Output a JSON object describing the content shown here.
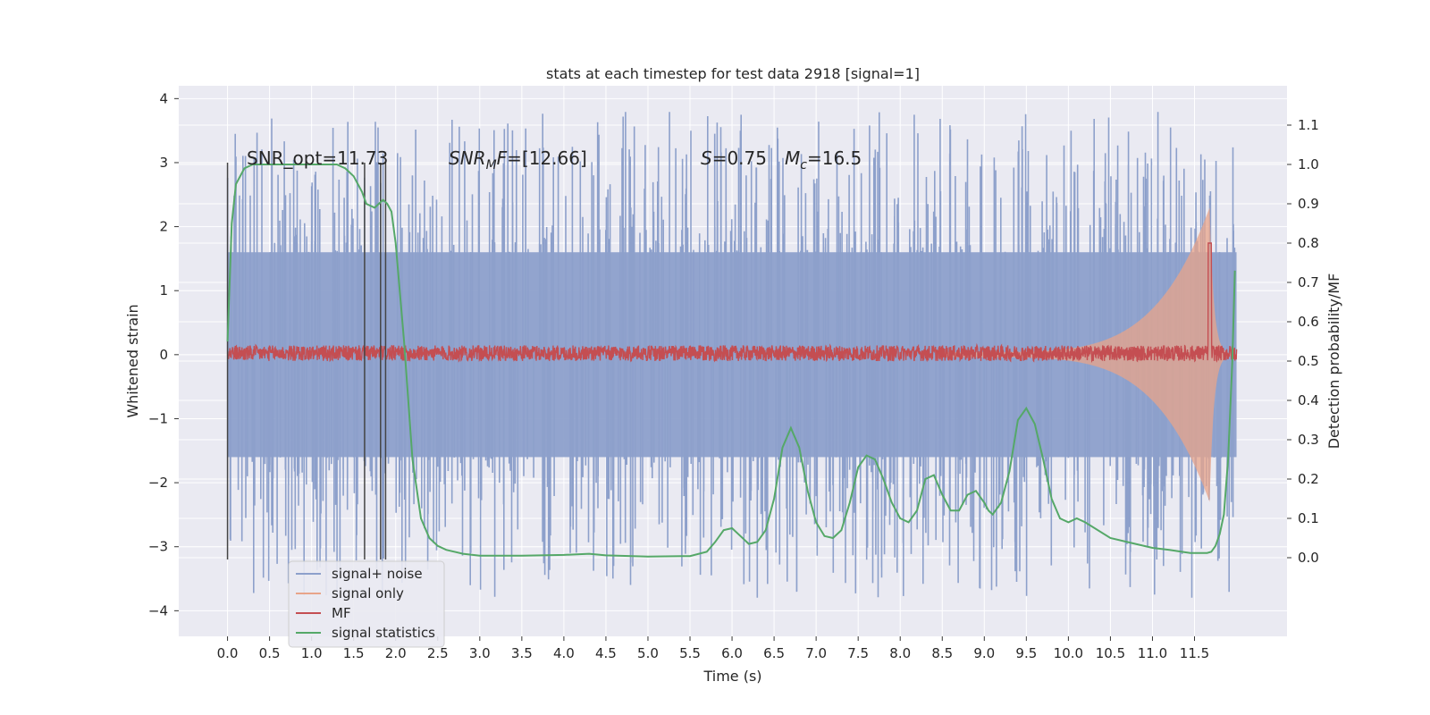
{
  "chart_data": {
    "type": "line",
    "title": "stats at each timestep for test data 2918 [signal=1]",
    "xlabel": "Time (s)",
    "ylabel_left": "Whitened strain",
    "ylabel_right": "Detection probability/MF",
    "xlim": [
      -0.58,
      12.6
    ],
    "ylim_left": [
      -4.4,
      4.2
    ],
    "ylim_right": [
      -0.2,
      1.2
    ],
    "xticks": [
      "0.0",
      "0.5",
      "1.0",
      "1.5",
      "2.0",
      "2.5",
      "3.0",
      "3.5",
      "4.0",
      "4.5",
      "5.0",
      "5.5",
      "6.0",
      "6.5",
      "7.0",
      "7.5",
      "8.0",
      "8.5",
      "9.0",
      "9.5",
      "10.0",
      "10.5",
      "11.0",
      "11.5"
    ],
    "yticks_left": [
      "-4",
      "-3",
      "-2",
      "-1",
      "0",
      "1",
      "2",
      "3",
      "4"
    ],
    "yticks_right": [
      "0.0",
      "0.1",
      "0.2",
      "0.3",
      "0.4",
      "0.5",
      "0.6",
      "0.7",
      "0.8",
      "0.9",
      "1.0",
      "1.1"
    ],
    "grid": true,
    "legend_position": "lower-left",
    "annotations": {
      "snr_opt": "SNR_opt=11.73",
      "snr_mf": "=[12.66]",
      "snr_mf_symbol": "SNR",
      "snr_mf_sub": "M",
      "snr_mf_f": "F",
      "s_symbol": "S",
      "s_value": "=0.75",
      "mc_symbol": "M",
      "mc_sub": "c",
      "mc_value": "=16.5"
    },
    "vertical_lines_x": [
      0.0,
      1.63,
      1.82,
      1.88
    ],
    "series": [
      {
        "name": "signal+ noise",
        "color": "#8da0cb",
        "envelope": {
          "x_start": 0.0,
          "x_end": 12.0,
          "core_amplitude": 1.6,
          "peak_amplitude": 3.8
        }
      },
      {
        "name": "signal only",
        "color": "#e8a48a",
        "chirp": {
          "x_start": 8.5,
          "x_merger": 11.68,
          "x_end": 12.0,
          "peak_amplitude": 2.3
        }
      },
      {
        "name": "MF",
        "color": "#c44e52",
        "baseline": 0.52,
        "spike_x": 11.68,
        "spike_value": 0.8
      },
      {
        "name": "signal statistics",
        "color": "#55a868",
        "x": [
          0.0,
          0.05,
          0.1,
          0.2,
          0.3,
          0.5,
          1.0,
          1.3,
          1.4,
          1.5,
          1.6,
          1.65,
          1.75,
          1.8,
          1.85,
          1.9,
          1.95,
          2.0,
          2.1,
          2.2,
          2.3,
          2.4,
          2.5,
          2.6,
          2.8,
          3.0,
          3.5,
          4.0,
          4.3,
          4.5,
          5.0,
          5.5,
          5.7,
          5.8,
          5.9,
          6.0,
          6.1,
          6.2,
          6.3,
          6.4,
          6.5,
          6.6,
          6.7,
          6.8,
          6.9,
          7.0,
          7.1,
          7.2,
          7.3,
          7.4,
          7.5,
          7.6,
          7.7,
          7.8,
          7.9,
          8.0,
          8.1,
          8.2,
          8.3,
          8.4,
          8.5,
          8.6,
          8.7,
          8.8,
          8.9,
          9.0,
          9.05,
          9.1,
          9.2,
          9.3,
          9.4,
          9.5,
          9.6,
          9.7,
          9.8,
          9.9,
          10.0,
          10.1,
          10.2,
          10.5,
          10.8,
          11.0,
          11.2,
          11.35,
          11.45,
          11.55,
          11.65,
          11.7,
          11.75,
          11.8,
          11.85,
          11.9,
          11.95,
          11.98
        ],
        "y": [
          0.55,
          0.85,
          0.95,
          0.99,
          1.0,
          1.0,
          1.0,
          1.0,
          0.99,
          0.97,
          0.93,
          0.9,
          0.89,
          0.9,
          0.91,
          0.9,
          0.88,
          0.8,
          0.55,
          0.25,
          0.1,
          0.05,
          0.03,
          0.02,
          0.01,
          0.005,
          0.005,
          0.007,
          0.01,
          0.006,
          0.003,
          0.004,
          0.015,
          0.04,
          0.07,
          0.075,
          0.055,
          0.035,
          0.04,
          0.07,
          0.15,
          0.28,
          0.33,
          0.28,
          0.17,
          0.09,
          0.055,
          0.05,
          0.07,
          0.14,
          0.23,
          0.26,
          0.25,
          0.2,
          0.14,
          0.1,
          0.09,
          0.12,
          0.2,
          0.21,
          0.16,
          0.12,
          0.12,
          0.16,
          0.17,
          0.14,
          0.12,
          0.11,
          0.14,
          0.22,
          0.35,
          0.38,
          0.34,
          0.25,
          0.15,
          0.1,
          0.09,
          0.1,
          0.09,
          0.05,
          0.035,
          0.025,
          0.02,
          0.015,
          0.012,
          0.012,
          0.012,
          0.015,
          0.03,
          0.06,
          0.11,
          0.25,
          0.5,
          0.73
        ]
      }
    ]
  }
}
